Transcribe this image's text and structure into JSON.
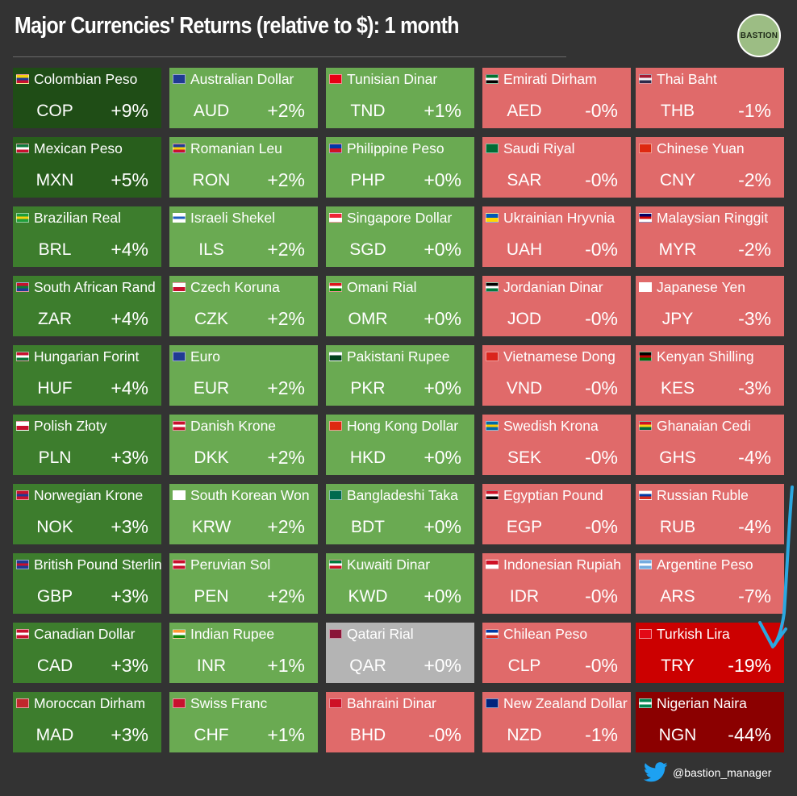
{
  "title": "Major Currencies' Returns (relative to $): 1 month",
  "logo_text": "BASTION",
  "twitter_handle": "@bastion_manager",
  "icons": {
    "logo": "bastion-logo-icon",
    "twitter": "twitter-bird-icon",
    "arrow": "hand-drawn-arrow-icon"
  },
  "colors": {
    "background": "#333333",
    "dark_green": "#285e1c",
    "medium_green": "#3d7d2d",
    "light_green": "#6aaa52",
    "neutral": "#b4b4b4",
    "light_red": "#e06a6a",
    "red": "#cc0000",
    "dark_red": "#8b0000",
    "arrow": "#2ba8e0"
  },
  "chart_data": {
    "type": "table",
    "columns": [
      [
        {
          "name": "Colombian Peso",
          "code": "COP",
          "ret": "+9%",
          "value": 9,
          "flag": [
            "#f6d20c",
            "#1f3a93",
            "#c8102e"
          ]
        },
        {
          "name": "Mexican Peso",
          "code": "MXN",
          "ret": "+5%",
          "value": 5,
          "flag": [
            "#0b7a3b",
            "#ffffff",
            "#c8102e"
          ]
        },
        {
          "name": "Brazilian Real",
          "code": "BRL",
          "ret": "+4%",
          "value": 4,
          "flag": [
            "#1e9e3a",
            "#f6d20c",
            "#1e9e3a"
          ]
        },
        {
          "name": "South African Rand",
          "code": "ZAR",
          "ret": "+4%",
          "value": 4,
          "flag": [
            "#c8102e",
            "#0b7a3b",
            "#1f3a93"
          ]
        },
        {
          "name": "Hungarian Forint",
          "code": "HUF",
          "ret": "+4%",
          "value": 4,
          "flag": [
            "#c8102e",
            "#ffffff",
            "#0b7a3b"
          ]
        },
        {
          "name": "Polish Złoty",
          "code": "PLN",
          "ret": "+3%",
          "value": 3,
          "flag": [
            "#ffffff",
            "#c8102e"
          ]
        },
        {
          "name": "Norwegian Krone",
          "code": "NOK",
          "ret": "+3%",
          "value": 3,
          "flag": [
            "#c8102e",
            "#1f3a93",
            "#c8102e"
          ]
        },
        {
          "name": "British Pound Sterling",
          "code": "GBP",
          "ret": "+3%",
          "value": 3,
          "flag": [
            "#1f3a93",
            "#c8102e",
            "#1f3a93"
          ]
        },
        {
          "name": "Canadian Dollar",
          "code": "CAD",
          "ret": "+3%",
          "value": 3,
          "flag": [
            "#c8102e",
            "#ffffff",
            "#c8102e"
          ]
        },
        {
          "name": "Moroccan Dirham",
          "code": "MAD",
          "ret": "+3%",
          "value": 3,
          "flag": [
            "#c1272d",
            "#c1272d"
          ]
        }
      ],
      [
        {
          "name": "Australian Dollar",
          "code": "AUD",
          "ret": "+2%",
          "value": 2,
          "flag": [
            "#1f3a93",
            "#1f3a93"
          ]
        },
        {
          "name": "Romanian Leu",
          "code": "RON",
          "ret": "+2%",
          "value": 2,
          "flag": [
            "#1f3a93",
            "#f6d20c",
            "#c8102e"
          ]
        },
        {
          "name": "Israeli Shekel",
          "code": "ILS",
          "ret": "+2%",
          "value": 2,
          "flag": [
            "#ffffff",
            "#1f5fbf",
            "#ffffff"
          ]
        },
        {
          "name": "Czech Koruna",
          "code": "CZK",
          "ret": "+2%",
          "value": 2,
          "flag": [
            "#ffffff",
            "#c8102e"
          ]
        },
        {
          "name": "Euro",
          "code": "EUR",
          "ret": "+2%",
          "value": 2,
          "flag": [
            "#1f3a93",
            "#1f3a93"
          ]
        },
        {
          "name": "Danish Krone",
          "code": "DKK",
          "ret": "+2%",
          "value": 2,
          "flag": [
            "#c8102e",
            "#ffffff",
            "#c8102e"
          ]
        },
        {
          "name": "South Korean Won",
          "code": "KRW",
          "ret": "+2%",
          "value": 2,
          "flag": [
            "#ffffff",
            "#ffffff"
          ]
        },
        {
          "name": "Peruvian Sol",
          "code": "PEN",
          "ret": "+2%",
          "value": 2,
          "flag": [
            "#c8102e",
            "#ffffff",
            "#c8102e"
          ]
        },
        {
          "name": "Indian Rupee",
          "code": "INR",
          "ret": "+1%",
          "value": 1,
          "flag": [
            "#ff9933",
            "#ffffff",
            "#138808"
          ]
        },
        {
          "name": "Swiss Franc",
          "code": "CHF",
          "ret": "+1%",
          "value": 1,
          "flag": [
            "#c8102e",
            "#c8102e"
          ]
        }
      ],
      [
        {
          "name": "Tunisian Dinar",
          "code": "TND",
          "ret": "+1%",
          "value": 1,
          "flag": [
            "#e70013",
            "#e70013"
          ]
        },
        {
          "name": "Philippine Peso",
          "code": "PHP",
          "ret": "+0%",
          "value": 0,
          "flag": [
            "#0038a8",
            "#ce1126"
          ]
        },
        {
          "name": "Singapore Dollar",
          "code": "SGD",
          "ret": "+0%",
          "value": 0,
          "flag": [
            "#ee2536",
            "#ffffff"
          ]
        },
        {
          "name": "Omani Rial",
          "code": "OMR",
          "ret": "+0%",
          "value": 0,
          "flag": [
            "#db161b",
            "#ffffff",
            "#008000"
          ]
        },
        {
          "name": "Pakistani Rupee",
          "code": "PKR",
          "ret": "+0%",
          "value": 0,
          "flag": [
            "#ffffff",
            "#01411c",
            "#01411c"
          ]
        },
        {
          "name": "Hong Kong Dollar",
          "code": "HKD",
          "ret": "+0%",
          "value": 0,
          "flag": [
            "#de2910",
            "#de2910"
          ]
        },
        {
          "name": "Bangladeshi Taka",
          "code": "BDT",
          "ret": "+0%",
          "value": 0,
          "flag": [
            "#006a4e",
            "#006a4e"
          ]
        },
        {
          "name": "Kuwaiti Dinar",
          "code": "KWD",
          "ret": "+0%",
          "value": 0,
          "flag": [
            "#007a3d",
            "#ffffff",
            "#ce1126"
          ]
        },
        {
          "name": "Qatari Rial",
          "code": "QAR",
          "ret": "+0%",
          "value": 0,
          "flag": [
            "#8a1538",
            "#8a1538"
          ]
        },
        {
          "name": "Bahraini Dinar",
          "code": "BHD",
          "ret": "-0%",
          "value": 0,
          "flag": [
            "#ce1126",
            "#ce1126"
          ]
        }
      ],
      [
        {
          "name": "Emirati Dirham",
          "code": "AED",
          "ret": "-0%",
          "value": 0,
          "flag": [
            "#00732f",
            "#ffffff",
            "#000000"
          ]
        },
        {
          "name": "Saudi Riyal",
          "code": "SAR",
          "ret": "-0%",
          "value": 0,
          "flag": [
            "#006c35",
            "#006c35"
          ]
        },
        {
          "name": "Ukrainian Hryvnia",
          "code": "UAH",
          "ret": "-0%",
          "value": 0,
          "flag": [
            "#0057b7",
            "#ffd700"
          ]
        },
        {
          "name": "Jordanian Dinar",
          "code": "JOD",
          "ret": "-0%",
          "value": 0,
          "flag": [
            "#000000",
            "#ffffff",
            "#007a3d"
          ]
        },
        {
          "name": "Vietnamese Dong",
          "code": "VND",
          "ret": "-0%",
          "value": 0,
          "flag": [
            "#da251d",
            "#da251d"
          ]
        },
        {
          "name": "Swedish Krona",
          "code": "SEK",
          "ret": "-0%",
          "value": 0,
          "flag": [
            "#006aa7",
            "#fecc00",
            "#006aa7"
          ]
        },
        {
          "name": "Egyptian Pound",
          "code": "EGP",
          "ret": "-0%",
          "value": 0,
          "flag": [
            "#ce1126",
            "#ffffff",
            "#000000"
          ]
        },
        {
          "name": "Indonesian Rupiah",
          "code": "IDR",
          "ret": "-0%",
          "value": 0,
          "flag": [
            "#ce1126",
            "#ffffff"
          ]
        },
        {
          "name": "Chilean Peso",
          "code": "CLP",
          "ret": "-0%",
          "value": 0,
          "flag": [
            "#0039a6",
            "#ffffff",
            "#d52b1e"
          ]
        },
        {
          "name": "New Zealand Dollar",
          "code": "NZD",
          "ret": "-1%",
          "value": -1,
          "flag": [
            "#00247d",
            "#00247d"
          ]
        }
      ],
      [
        {
          "name": "Thai Baht",
          "code": "THB",
          "ret": "-1%",
          "value": -1,
          "flag": [
            "#a51931",
            "#f4f5f8",
            "#2d2a4a"
          ]
        },
        {
          "name": "Chinese Yuan",
          "code": "CNY",
          "ret": "-2%",
          "value": -2,
          "flag": [
            "#de2910",
            "#de2910"
          ]
        },
        {
          "name": "Malaysian Ringgit",
          "code": "MYR",
          "ret": "-2%",
          "value": -2,
          "flag": [
            "#010066",
            "#cc0001",
            "#ffffff"
          ]
        },
        {
          "name": "Japanese Yen",
          "code": "JPY",
          "ret": "-3%",
          "value": -3,
          "flag": [
            "#ffffff",
            "#ffffff"
          ]
        },
        {
          "name": "Kenyan Shilling",
          "code": "KES",
          "ret": "-3%",
          "value": -3,
          "flag": [
            "#000000",
            "#bb0000",
            "#006600"
          ]
        },
        {
          "name": "Ghanaian Cedi",
          "code": "GHS",
          "ret": "-4%",
          "value": -4,
          "flag": [
            "#ce1126",
            "#fcd116",
            "#006b3f"
          ]
        },
        {
          "name": "Russian Ruble",
          "code": "RUB",
          "ret": "-4%",
          "value": -4,
          "flag": [
            "#ffffff",
            "#0039a6",
            "#d52b1e"
          ]
        },
        {
          "name": "Argentine Peso",
          "code": "ARS",
          "ret": "-7%",
          "value": -7,
          "flag": [
            "#74acdf",
            "#ffffff",
            "#74acdf"
          ]
        },
        {
          "name": "Turkish Lira",
          "code": "TRY",
          "ret": "-19%",
          "value": -19,
          "flag": [
            "#e30a17",
            "#e30a17"
          ]
        },
        {
          "name": "Nigerian Naira",
          "code": "NGN",
          "ret": "-44%",
          "value": -44,
          "flag": [
            "#008751",
            "#ffffff",
            "#008751"
          ]
        }
      ]
    ]
  }
}
